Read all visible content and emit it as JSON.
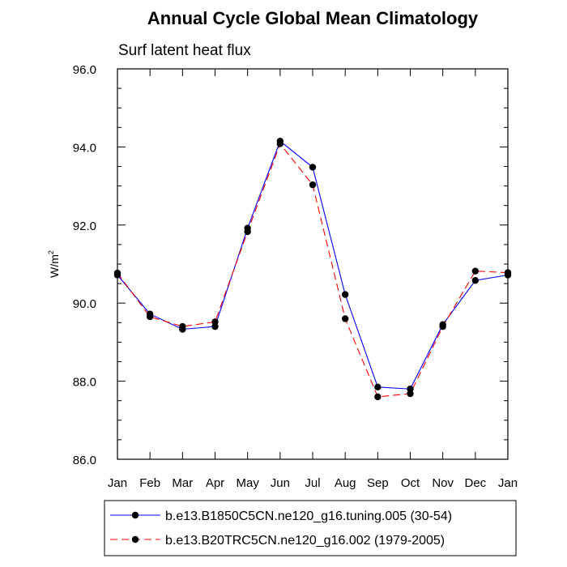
{
  "chart_data": {
    "type": "line",
    "title": "Annual Cycle Global Mean Climatology",
    "subtitle": "Surf latent heat flux",
    "ylabel_main": "W/m",
    "ylabel_sup": "2",
    "xlabel": "",
    "categories": [
      "Jan",
      "Feb",
      "Mar",
      "Apr",
      "May",
      "Jun",
      "Jul",
      "Aug",
      "Sep",
      "Oct",
      "Nov",
      "Dec",
      "Jan"
    ],
    "ylim": [
      86.0,
      96.0
    ],
    "yticks": [
      86.0,
      88.0,
      90.0,
      92.0,
      94.0,
      96.0
    ],
    "ytick_labels": [
      "86.0",
      "88.0",
      "90.0",
      "92.0",
      "94.0",
      "96.0"
    ],
    "legend_placement": "bottom",
    "series": [
      {
        "name": "b.e13.B1850C5CN.ne120_g16.tuning.005 (30-54)",
        "color": "#0000ff",
        "dashed": false,
        "values": [
          90.72,
          89.72,
          89.33,
          89.4,
          91.92,
          94.15,
          93.48,
          90.22,
          87.85,
          87.8,
          89.45,
          90.58,
          90.72
        ]
      },
      {
        "name": "b.e13.B20TRC5CN.ne120_g16.002 (1979-2005)",
        "color": "#ff0000",
        "dashed": true,
        "values": [
          90.77,
          89.65,
          89.4,
          89.52,
          91.83,
          94.08,
          93.03,
          89.6,
          87.6,
          87.68,
          89.4,
          90.82,
          90.78
        ]
      }
    ]
  }
}
